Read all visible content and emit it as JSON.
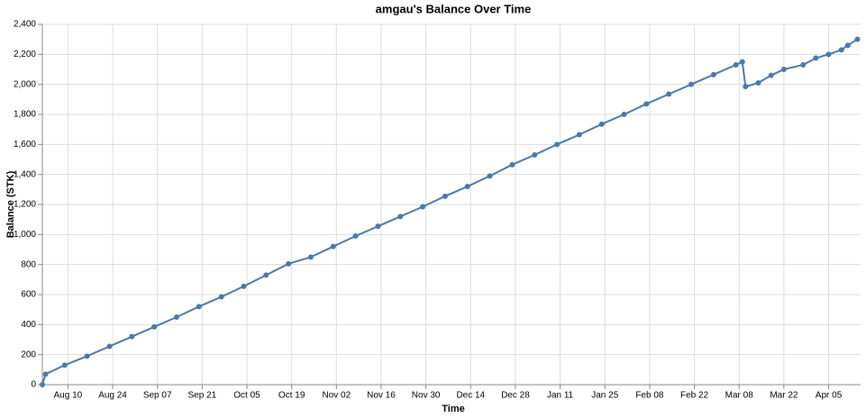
{
  "chart_data": {
    "type": "line",
    "title": "amgau's Balance Over Time",
    "x_label": "Time",
    "y_label": "Balance (STK)",
    "color": "#4c78a8",
    "grid": true,
    "x": [
      "Aug 02",
      "Aug 03",
      "Aug 09",
      "Aug 16",
      "Aug 23",
      "Aug 30",
      "Sep 06",
      "Sep 13",
      "Sep 20",
      "Sep 27",
      "Oct 04",
      "Oct 11",
      "Oct 18",
      "Oct 25",
      "Nov 01",
      "Nov 08",
      "Nov 15",
      "Nov 22",
      "Nov 29",
      "Dec 06",
      "Dec 13",
      "Dec 20",
      "Dec 27",
      "Jan 03",
      "Jan 10",
      "Jan 17",
      "Jan 24",
      "Jan 31",
      "Feb 07",
      "Feb 14",
      "Feb 21",
      "Feb 28",
      "Mar 07",
      "Mar 09",
      "Mar 10",
      "Mar 14",
      "Mar 18",
      "Mar 22",
      "Mar 28",
      "Apr 01",
      "Apr 05",
      "Apr 09",
      "Apr 11",
      "Apr 14"
    ],
    "series": [
      {
        "name": "Balance",
        "color": "#4c78a8",
        "values": [
          0,
          70,
          130,
          190,
          255,
          320,
          385,
          450,
          520,
          585,
          655,
          730,
          805,
          850,
          920,
          990,
          1055,
          1120,
          1185,
          1255,
          1320,
          1390,
          1465,
          1530,
          1600,
          1665,
          1735,
          1800,
          1870,
          1935,
          2000,
          2065,
          2130,
          2150,
          1985,
          2010,
          2060,
          2100,
          2130,
          2175,
          2200,
          2230,
          2260,
          2300
        ]
      }
    ],
    "xlim": [
      "Aug 02",
      "Apr 15"
    ],
    "xticks": [
      "Aug 10",
      "Aug 24",
      "Sep 07",
      "Sep 21",
      "Oct 05",
      "Oct 19",
      "Nov 02",
      "Nov 16",
      "Nov 30",
      "Dec 14",
      "Dec 28",
      "Jan 11",
      "Jan 25",
      "Feb 08",
      "Feb 22",
      "Mar 08",
      "Mar 22",
      "Apr 05"
    ],
    "ylim": [
      0,
      2400
    ],
    "yticks": [
      0,
      200,
      400,
      600,
      800,
      {
        "value": 1000,
        "label": "1,000"
      },
      {
        "value": 1200,
        "label": "1,200"
      },
      {
        "value": 1400,
        "label": "1,400"
      },
      {
        "value": 1600,
        "label": "1,600"
      },
      {
        "value": 1800,
        "label": "1,800"
      },
      {
        "value": 2000,
        "label": "2,000"
      },
      {
        "value": 2200,
        "label": "2,200"
      },
      {
        "value": 2400,
        "label": "2,400"
      }
    ]
  }
}
